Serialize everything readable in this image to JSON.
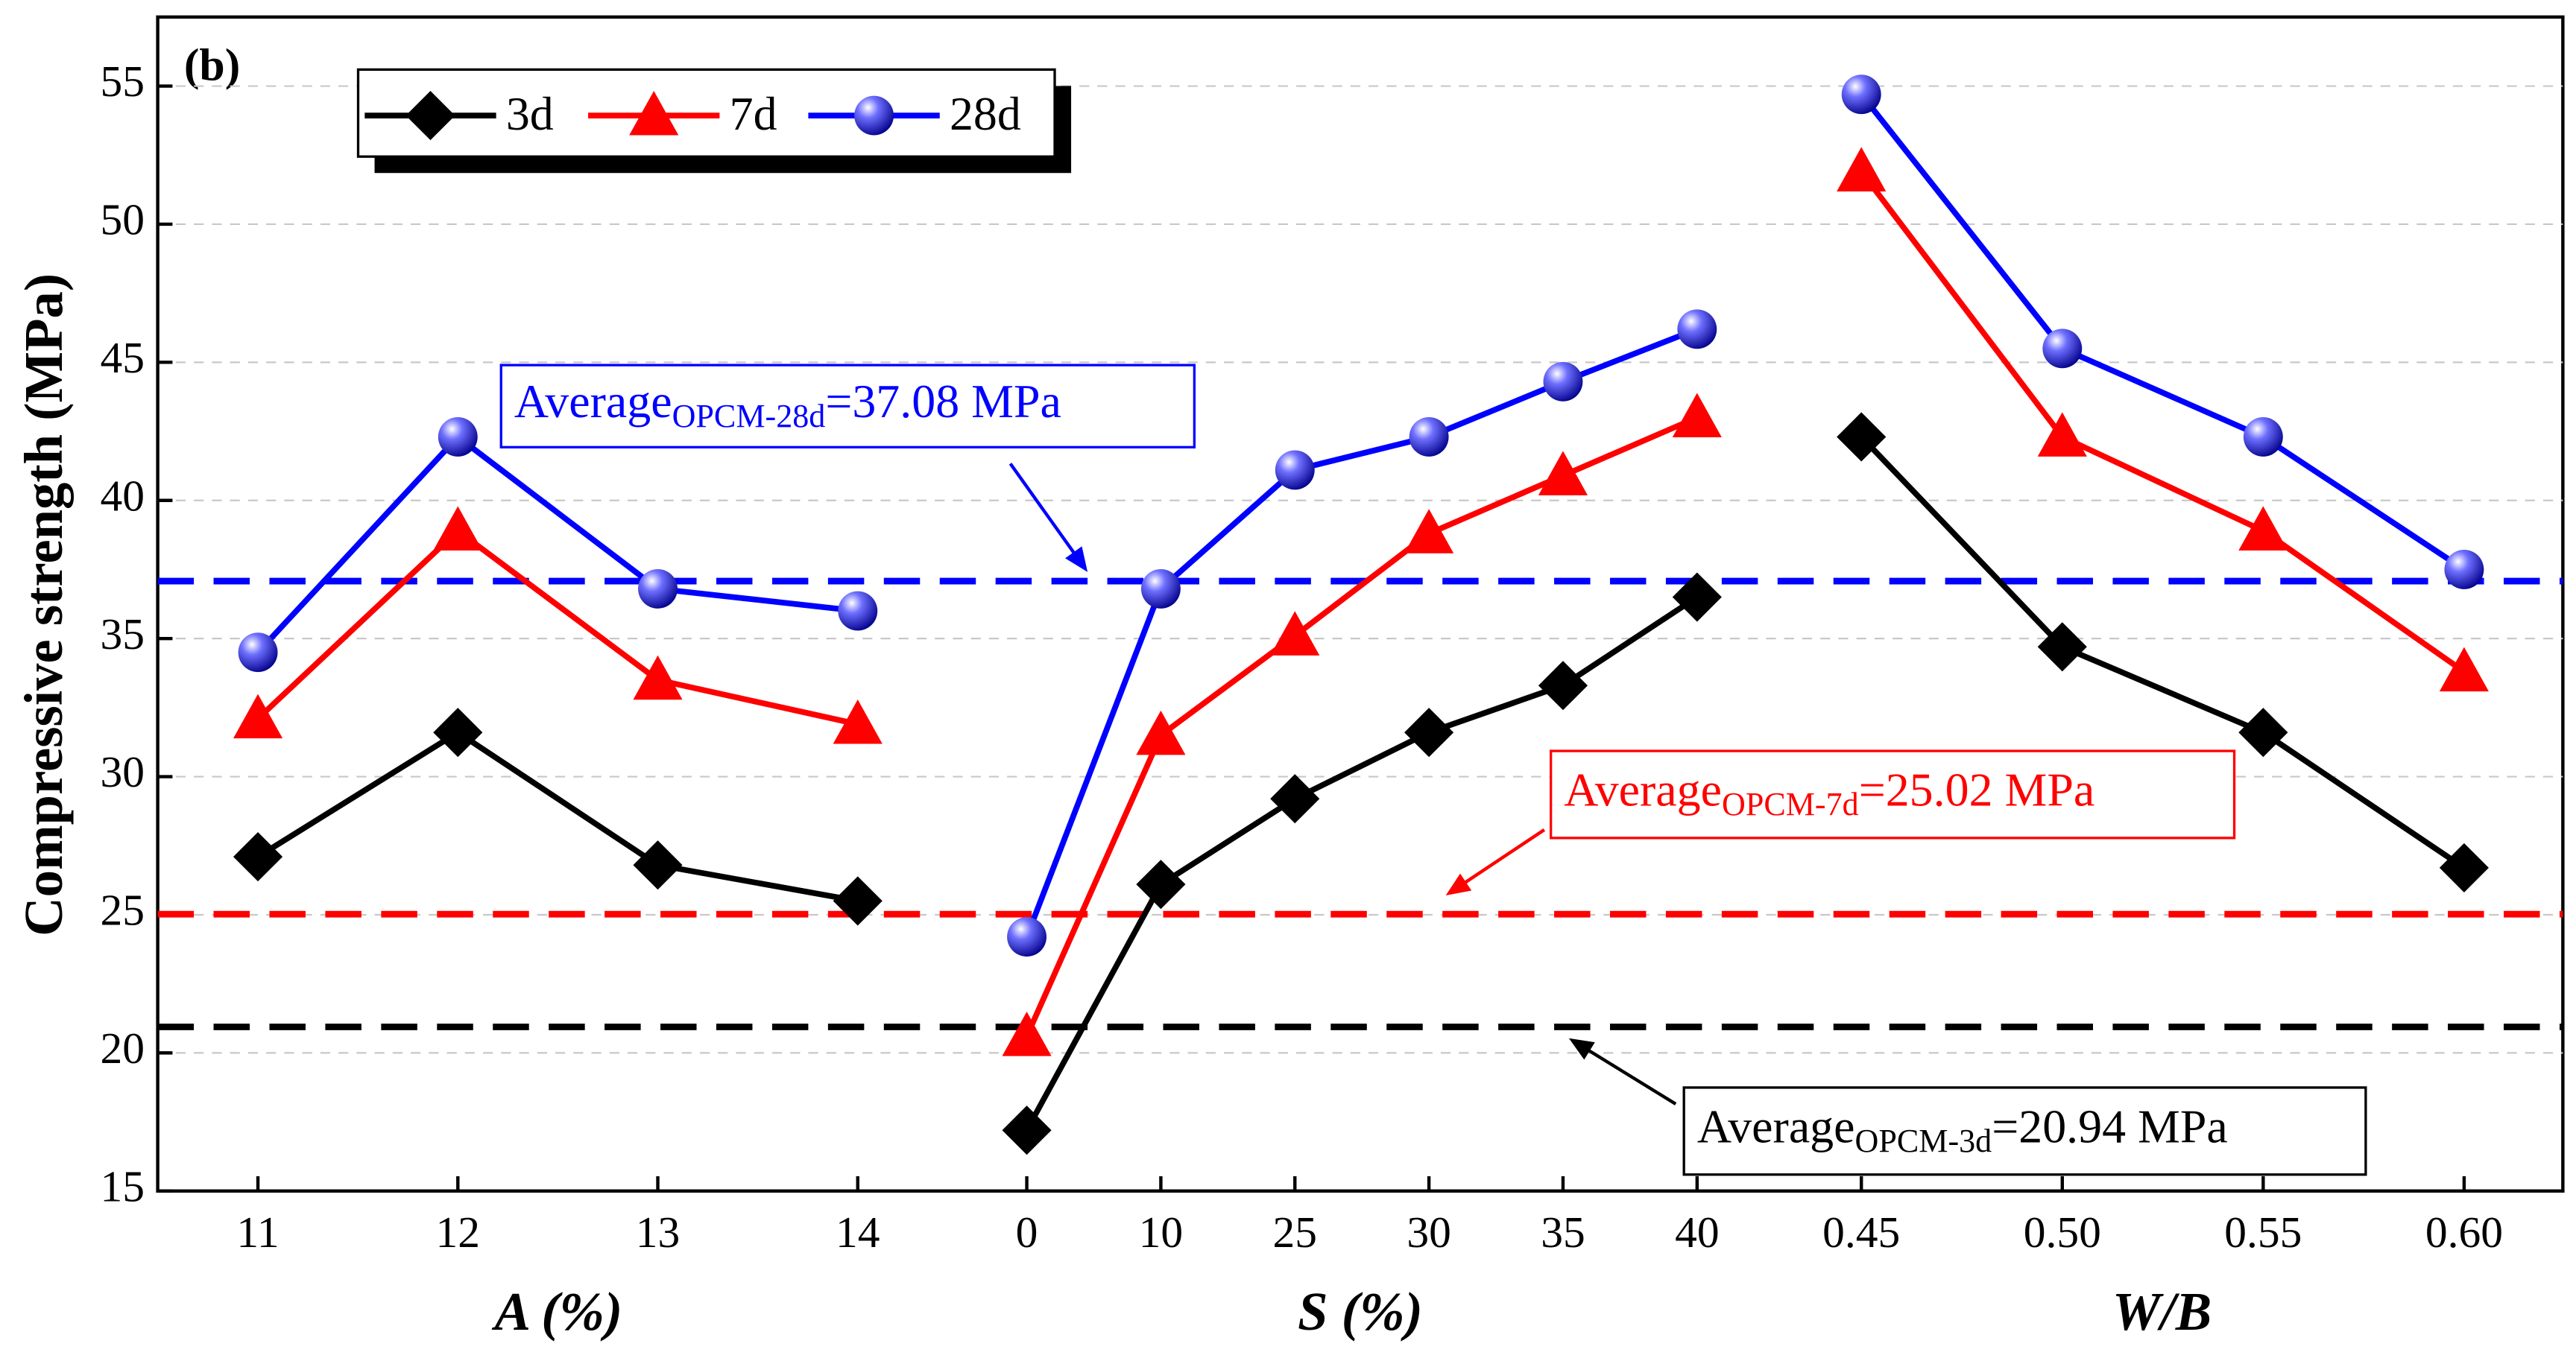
{
  "chart_data": {
    "type": "line",
    "title": "(b)",
    "ylabel": "Compressive strength (MPa)",
    "ylim": [
      15,
      57.5
    ],
    "yticks": [
      15,
      20,
      25,
      30,
      35,
      40,
      45,
      50,
      55
    ],
    "grid": true,
    "legend": "top-left",
    "series": [
      {
        "name": "3d",
        "color": "#000000",
        "marker": "diamond"
      },
      {
        "name": "7d",
        "color": "#ff0000",
        "marker": "triangle"
      },
      {
        "name": "28d",
        "color": "#0000ff",
        "marker": "circle"
      }
    ],
    "panels": [
      {
        "xlabel": "A (%)",
        "categories": [
          "11",
          "12",
          "13",
          "14"
        ],
        "series": [
          {
            "values": [
              27.1,
              31.6,
              26.8,
              25.5
            ]
          },
          {
            "values": [
              32.1,
              38.9,
              33.5,
              31.9
            ]
          },
          {
            "values": [
              34.5,
              42.3,
              36.8,
              36.0
            ]
          }
        ]
      },
      {
        "xlabel": "S (%)",
        "categories": [
          "0",
          "10",
          "25",
          "30",
          "35",
          "40"
        ],
        "series": [
          {
            "values": [
              17.2,
              26.1,
              29.2,
              31.6,
              33.3,
              36.5
            ]
          },
          {
            "values": [
              20.6,
              31.5,
              35.1,
              38.8,
              40.9,
              43.0
            ]
          },
          {
            "values": [
              24.2,
              36.8,
              41.1,
              42.3,
              44.3,
              46.2
            ]
          }
        ]
      },
      {
        "xlabel": "W/B",
        "categories": [
          "0.45",
          "0.50",
          "0.55",
          "0.60"
        ],
        "series": [
          {
            "values": [
              42.3,
              34.7,
              31.6,
              26.7
            ]
          },
          {
            "values": [
              51.9,
              42.3,
              38.9,
              33.8
            ]
          },
          {
            "values": [
              54.7,
              45.5,
              42.3,
              37.5
            ]
          }
        ]
      }
    ],
    "references": [
      {
        "value": 37.08,
        "color": "#0000ff",
        "prefix": "Average",
        "subscript": "OPCM-28d",
        "suffix": "=37.08 MPa"
      },
      {
        "value": 25.02,
        "color": "#ff0000",
        "prefix": "Average",
        "subscript": "OPCM-7d",
        "suffix": "=25.02 MPa"
      },
      {
        "value": 20.94,
        "color": "#000000",
        "prefix": "Average",
        "subscript": "OPCM-3d",
        "suffix": "=20.94 MPa"
      }
    ]
  }
}
